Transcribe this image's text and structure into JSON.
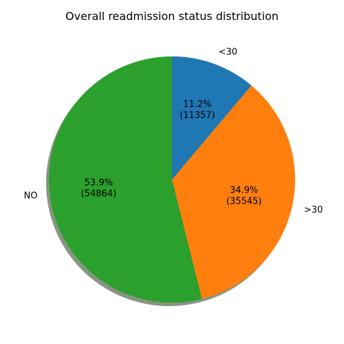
{
  "chart_data": {
    "type": "pie",
    "title": "Overall readmission status distribution",
    "shadow": true,
    "start_angle_deg": 90,
    "direction": "clockwise",
    "slices": [
      {
        "label": "<30",
        "count": 11357,
        "percent_label": "11.2%",
        "count_label": "(11357)",
        "color": "#1f77b4"
      },
      {
        "label": ">30",
        "count": 35545,
        "percent_label": "34.9%",
        "count_label": "(35545)",
        "color": "#ff7f0e"
      },
      {
        "label": "NO",
        "count": 54864,
        "percent_label": "53.9%",
        "count_label": "(54864)",
        "color": "#2ca02c"
      }
    ]
  }
}
